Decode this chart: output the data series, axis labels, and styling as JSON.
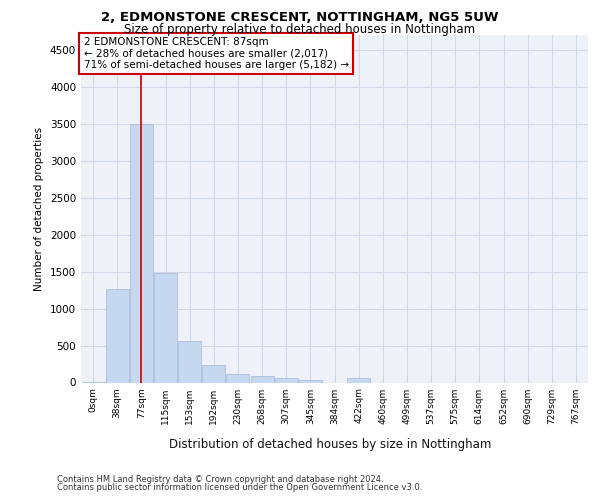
{
  "title1": "2, EDMONSTONE CRESCENT, NOTTINGHAM, NG5 5UW",
  "title2": "Size of property relative to detached houses in Nottingham",
  "xlabel": "Distribution of detached houses by size in Nottingham",
  "ylabel": "Number of detached properties",
  "categories": [
    "0sqm",
    "38sqm",
    "77sqm",
    "115sqm",
    "153sqm",
    "192sqm",
    "230sqm",
    "268sqm",
    "307sqm",
    "345sqm",
    "384sqm",
    "422sqm",
    "460sqm",
    "499sqm",
    "537sqm",
    "575sqm",
    "614sqm",
    "652sqm",
    "690sqm",
    "729sqm",
    "767sqm"
  ],
  "values": [
    5,
    1270,
    3500,
    1480,
    560,
    230,
    120,
    85,
    55,
    40,
    0,
    60,
    0,
    0,
    0,
    0,
    0,
    0,
    0,
    0,
    0
  ],
  "bar_color": "#c5d8f0",
  "bar_edge_color": "#a0b8d8",
  "grid_color": "#d0d8e8",
  "background_color": "#eef2f8",
  "red_line_x": 2,
  "annotation_line1": "2 EDMONSTONE CRESCENT: 87sqm",
  "annotation_line2": "← 28% of detached houses are smaller (2,017)",
  "annotation_line3": "71% of semi-detached houses are larger (5,182) →",
  "annotation_box_color": "#ffffff",
  "annotation_box_edge_color": "#cc0000",
  "footer1": "Contains HM Land Registry data © Crown copyright and database right 2024.",
  "footer2": "Contains public sector information licensed under the Open Government Licence v3.0.",
  "ylim": [
    0,
    4700
  ],
  "yticks": [
    0,
    500,
    1000,
    1500,
    2000,
    2500,
    3000,
    3500,
    4000,
    4500
  ]
}
